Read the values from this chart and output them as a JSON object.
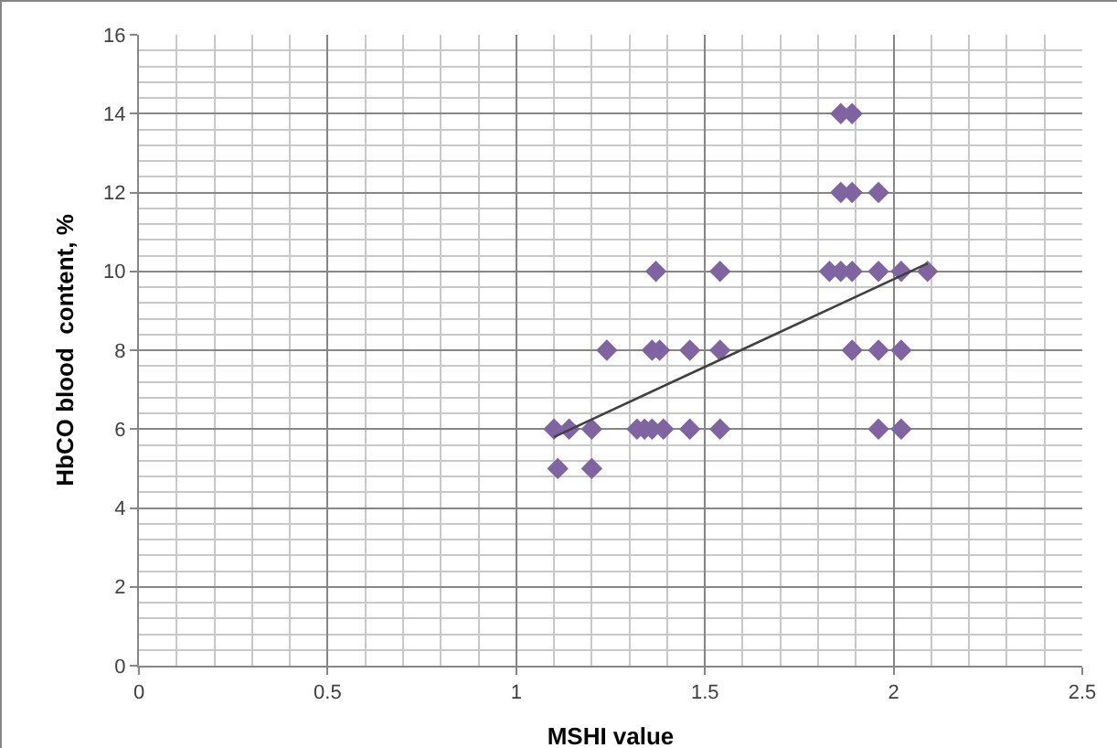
{
  "chart_data": {
    "type": "scatter",
    "xlabel": "MSHI value",
    "ylabel": "HbCO blood  content, %",
    "xlim": [
      0,
      2.5
    ],
    "xticks": [
      0,
      0.5,
      1,
      1.5,
      2,
      2.5
    ],
    "ylim": [
      0,
      16
    ],
    "yticks": [
      0,
      2,
      4,
      6,
      8,
      10,
      12,
      14,
      16
    ],
    "grid": true,
    "series": [
      {
        "color": "#8064a2",
        "marker": "diamond",
        "x": [
          1.86,
          1.89,
          1.86,
          1.89,
          1.96,
          1.37,
          1.54,
          1.83,
          1.86,
          1.89,
          1.96,
          2.02,
          2.09,
          1.24,
          1.36,
          1.38,
          1.46,
          1.54,
          1.89,
          1.96,
          2.02,
          1.1,
          1.14,
          1.2,
          1.32,
          1.34,
          1.36,
          1.39,
          1.46,
          1.54,
          1.96,
          2.02,
          1.11,
          1.2
        ],
        "values": [
          14,
          14,
          12,
          12,
          12,
          10,
          10,
          10,
          10,
          10,
          10,
          10,
          10,
          8,
          8,
          8,
          8,
          8,
          8,
          8,
          8,
          6,
          6,
          6,
          6,
          6,
          6,
          6,
          6,
          6,
          6,
          6,
          5,
          5
        ]
      },
      {
        "type": "line",
        "marker": "none",
        "color": "#404040",
        "x": [
          1.1,
          2.09
        ],
        "values": [
          5.8,
          10.2
        ]
      }
    ]
  }
}
